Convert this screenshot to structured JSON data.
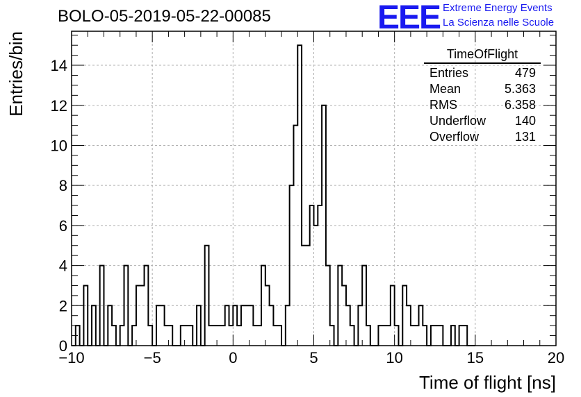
{
  "chart_data": {
    "type": "histogram",
    "title": "BOLO-05-2019-05-22-00085",
    "xlabel": "Time of flight [ns]",
    "ylabel": "Entries/bin",
    "xlim": [
      -10,
      20
    ],
    "ylim": [
      0,
      15.7
    ],
    "x_ticks": [
      "−10",
      "−5",
      "0",
      "5",
      "10",
      "15",
      "20"
    ],
    "y_ticks": [
      "0",
      "2",
      "4",
      "6",
      "8",
      "10",
      "12",
      "14"
    ],
    "grid": true,
    "bin_width": 0.25,
    "bin_start": -10,
    "values": [
      0,
      1,
      0,
      3,
      0,
      2,
      0,
      4,
      0,
      2,
      1,
      0,
      1,
      4,
      0,
      1,
      3,
      3,
      4,
      1,
      0,
      2,
      2,
      1,
      1,
      0,
      0,
      1,
      1,
      1,
      0,
      2,
      0,
      5,
      1,
      1,
      1,
      1,
      2,
      1,
      2,
      1,
      2,
      2,
      2,
      1,
      1,
      4,
      3,
      2,
      1,
      1,
      0,
      2,
      8,
      11,
      15,
      5,
      5,
      7,
      6,
      7,
      12,
      4,
      1,
      0,
      4,
      3,
      2,
      1,
      0,
      2,
      4,
      1,
      0,
      0,
      1,
      1,
      1,
      3,
      1,
      0,
      3,
      2,
      1,
      1,
      2,
      1,
      0,
      1,
      1,
      1,
      0,
      0,
      1,
      0,
      1,
      1,
      0,
      0
    ],
    "color": "#000000"
  },
  "stats": {
    "title": "TimeOfFlight",
    "rows": [
      {
        "label": "Entries",
        "value": "479"
      },
      {
        "label": "Mean",
        "value": "5.363"
      },
      {
        "label": "RMS",
        "value": "6.358"
      },
      {
        "label": "Underflow",
        "value": "140"
      },
      {
        "label": "Overflow",
        "value": "131"
      }
    ]
  },
  "logo": {
    "mark": "EEE",
    "line1": "Extreme Energy Events",
    "line2": "La Scienza nelle Scuole",
    "color": "#1a1af0"
  }
}
